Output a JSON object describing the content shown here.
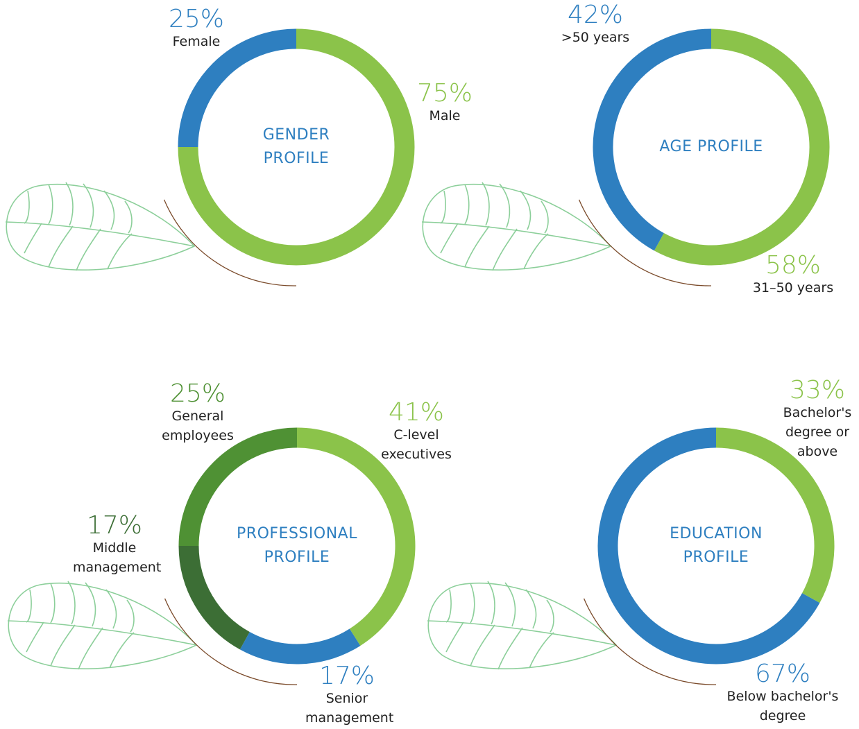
{
  "chart_data": [
    {
      "type": "donut",
      "title": "GENDER PROFILE",
      "categories": [
        "Male",
        "Female"
      ],
      "values": [
        75,
        25
      ],
      "value_labels": [
        "75%",
        "25%"
      ],
      "colors": [
        "#8bc34a",
        "#2e7fc0"
      ]
    },
    {
      "type": "donut",
      "title": "AGE PROFILE",
      "categories": [
        "31–50 years",
        ">50 years"
      ],
      "values": [
        58,
        42
      ],
      "value_labels": [
        "58%",
        "42%"
      ],
      "colors": [
        "#8bc34a",
        "#2e7fc0"
      ]
    },
    {
      "type": "donut",
      "title": "PROFESSIONAL PROFILE",
      "categories": [
        "C-level executives",
        "Senior management",
        "Middle management",
        "General employees"
      ],
      "values": [
        41,
        17,
        17,
        25
      ],
      "value_labels": [
        "41%",
        "17%",
        "17%",
        "25%"
      ],
      "colors": [
        "#8bc34a",
        "#2e7fc0",
        "#3c6e35",
        "#4f9134"
      ]
    },
    {
      "type": "donut",
      "title": "EDUCATION PROFILE",
      "categories": [
        "Bachelor's degree or above",
        "Below bachelor's degree"
      ],
      "values": [
        33,
        67
      ],
      "value_labels": [
        "33%",
        "67%"
      ],
      "colors": [
        "#8bc34a",
        "#2e7fc0"
      ]
    }
  ]
}
